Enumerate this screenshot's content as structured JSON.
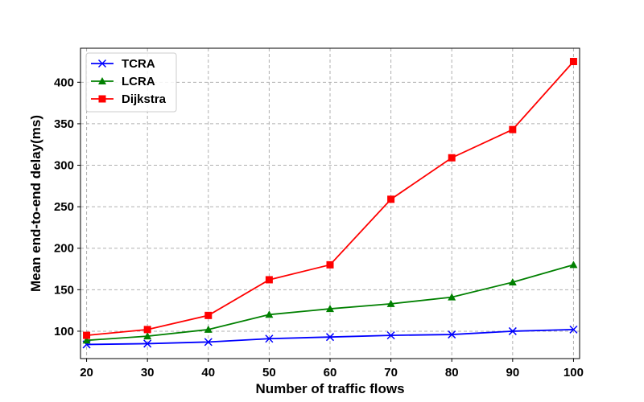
{
  "chart_data": {
    "type": "line",
    "xlabel": "Number of traffic flows",
    "ylabel": "Mean end-to-end delay(ms)",
    "x": [
      20,
      30,
      40,
      50,
      60,
      70,
      80,
      90,
      100
    ],
    "xticks": [
      20,
      30,
      40,
      50,
      60,
      70,
      80,
      90,
      100
    ],
    "yticks": [
      100,
      150,
      200,
      250,
      300,
      350,
      400
    ],
    "xlim": [
      19,
      101
    ],
    "ylim": [
      67,
      441
    ],
    "grid": true,
    "legend_position": "top-left",
    "series": [
      {
        "name": "TCRA",
        "color": "#0000ff",
        "marker": "x",
        "values": [
          84,
          85,
          87,
          91,
          93,
          95,
          96,
          100,
          102
        ]
      },
      {
        "name": "LCRA",
        "color": "#008000",
        "marker": "triangle",
        "values": [
          89,
          94,
          102,
          120,
          127,
          133,
          141,
          159,
          180
        ]
      },
      {
        "name": "Dijkstra",
        "color": "#ff0000",
        "marker": "square",
        "values": [
          95,
          102,
          119,
          162,
          180,
          259,
          309,
          343,
          425
        ]
      }
    ]
  }
}
